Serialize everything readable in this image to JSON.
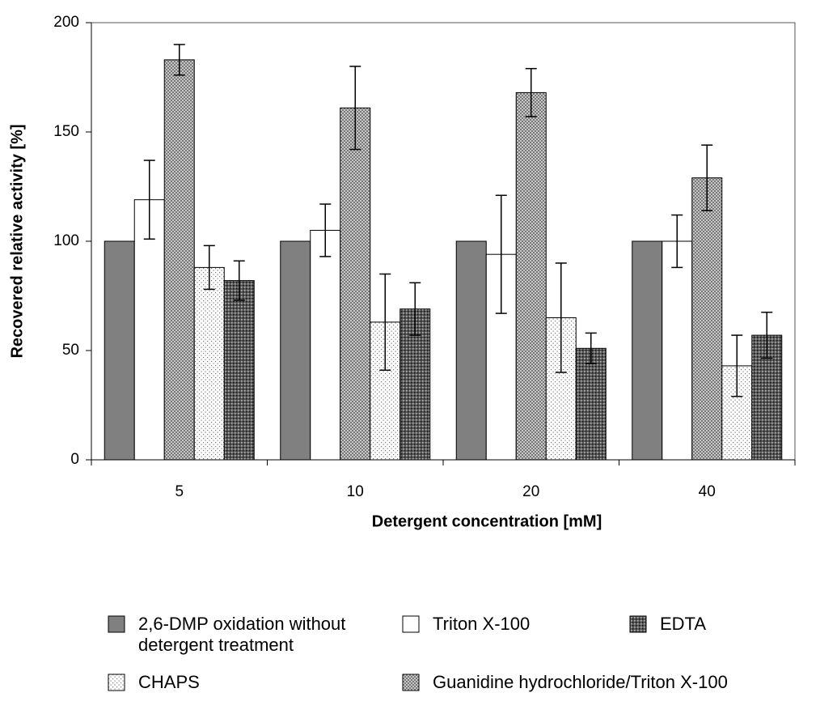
{
  "chart_data": {
    "type": "bar",
    "x_label": "Detergent concentration [mM]",
    "y_label": "Recovered relative activity [%]",
    "categories": [
      "5",
      "10",
      "20",
      "40"
    ],
    "ylim": [
      0,
      200
    ],
    "yticks": [
      0,
      50,
      100,
      150,
      200
    ],
    "series": [
      {
        "name": "2,6-DMP oxidation without detergent treatment",
        "color": "#808080",
        "pattern": "solid",
        "values": [
          100,
          100,
          100,
          100
        ]
      },
      {
        "name": "Triton X-100",
        "color": "#ffffff",
        "pattern": "solid",
        "values": [
          119,
          105,
          94,
          100
        ],
        "errors": [
          18,
          12,
          27,
          12
        ]
      },
      {
        "name": "Guanidine hydrochloride/Triton X-100",
        "color": "#a8a8a8",
        "pattern": "crosshatch",
        "values": [
          183,
          161,
          168,
          129
        ],
        "errors": [
          7,
          19,
          11,
          15
        ]
      },
      {
        "name": "CHAPS",
        "color": "#d0d0d0",
        "pattern": "dots",
        "values": [
          88,
          63,
          65,
          43
        ],
        "errors": [
          10,
          22,
          25,
          14
        ]
      },
      {
        "name": "EDTA",
        "color": "#404040",
        "pattern": "darkdots",
        "values": [
          82,
          69,
          51,
          57
        ],
        "errors": [
          9,
          12,
          7,
          10.5
        ]
      }
    ]
  }
}
